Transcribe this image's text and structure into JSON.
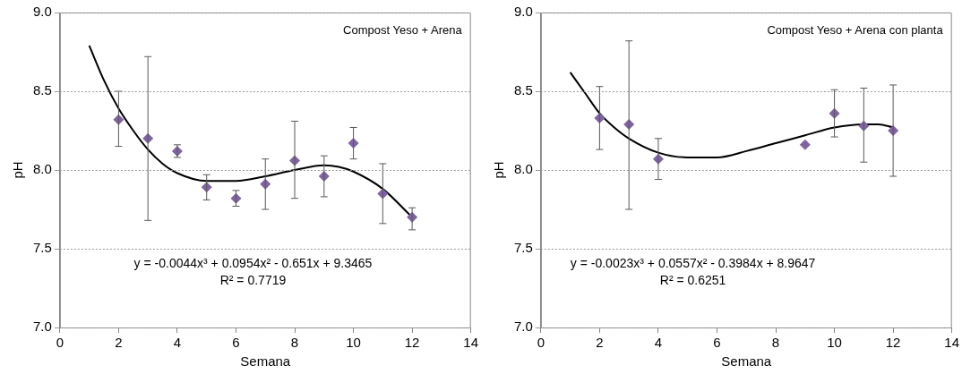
{
  "chart_data": [
    {
      "type": "scatter",
      "title": "Compost Yeso + Arena",
      "xlabel": "Semana",
      "ylabel": "pH",
      "xlim": [
        0,
        14
      ],
      "xticks": [
        0,
        2,
        4,
        6,
        8,
        10,
        12,
        14
      ],
      "ylim": [
        7,
        9
      ],
      "yticks": [
        {
          "value": 7,
          "label": "7.0"
        },
        {
          "value": 7.5,
          "label": "7.5"
        },
        {
          "value": 8,
          "label": "8.0"
        },
        {
          "value": 8.5,
          "label": "8.5"
        },
        {
          "value": 9,
          "label": "9.0"
        }
      ],
      "grid": "y",
      "annotations": [
        "y = -0.0044x³ + 0.0954x² - 0.651x + 9.3465",
        "R² = 0.7719"
      ],
      "series": [
        {
          "type": "scatter",
          "marker": "diamond",
          "color": "#8064a2",
          "x": [
            2,
            3,
            4,
            5,
            6,
            7,
            8,
            9,
            10,
            11,
            12
          ],
          "values": [
            8.32,
            8.2,
            8.12,
            7.89,
            7.82,
            7.91,
            8.06,
            7.96,
            8.17,
            7.85,
            7.7
          ],
          "errors": [
            [
              8.15,
              8.5
            ],
            [
              7.68,
              8.72
            ],
            [
              8.08,
              8.16
            ],
            [
              7.81,
              7.97
            ],
            [
              7.77,
              7.87
            ],
            [
              7.75,
              8.07
            ],
            [
              7.82,
              8.31
            ],
            [
              7.83,
              8.09
            ],
            [
              8.07,
              8.27
            ],
            [
              7.66,
              8.04
            ],
            [
              7.62,
              7.76
            ]
          ]
        },
        {
          "type": "line",
          "marker": "none",
          "color": "#000000",
          "x": [
            1,
            1.5,
            2,
            2.5,
            3,
            3.5,
            4,
            5,
            6,
            7,
            8,
            9,
            9.5,
            10,
            11,
            12
          ],
          "values": [
            8.79,
            8.57,
            8.39,
            8.25,
            8.13,
            8.04,
            7.98,
            7.93,
            7.93,
            7.96,
            8.0,
            8.03,
            8.02,
            7.99,
            7.88,
            7.7
          ]
        }
      ]
    },
    {
      "type": "scatter",
      "title": "Compost Yeso + Arena con planta",
      "xlabel": "Semana",
      "ylabel": "pH",
      "xlim": [
        0,
        14
      ],
      "xticks": [
        0,
        2,
        4,
        6,
        8,
        10,
        12,
        14
      ],
      "ylim": [
        7,
        9
      ],
      "yticks": [
        {
          "value": 7,
          "label": "7.0"
        },
        {
          "value": 7.5,
          "label": "7.5"
        },
        {
          "value": 8,
          "label": "8.0"
        },
        {
          "value": 8.5,
          "label": "8.5"
        },
        {
          "value": 9,
          "label": "9.0"
        }
      ],
      "grid": "y",
      "annotations": [
        "y = -0.0023x³ + 0.0557x² - 0.3984x + 8.9647",
        "R² = 0.6251"
      ],
      "series": [
        {
          "type": "scatter",
          "marker": "diamond",
          "color": "#8064a2",
          "x": [
            2,
            3,
            4,
            9,
            10,
            11,
            12
          ],
          "values": [
            8.33,
            8.29,
            8.07,
            8.16,
            8.36,
            8.28,
            8.25
          ],
          "errors": [
            [
              8.13,
              8.53
            ],
            [
              7.75,
              8.82
            ],
            [
              7.94,
              8.2
            ],
            null,
            [
              8.21,
              8.51
            ],
            [
              8.05,
              8.52
            ],
            [
              7.96,
              8.54
            ]
          ]
        },
        {
          "type": "line",
          "marker": "none",
          "color": "#000000",
          "x": [
            1,
            1.5,
            2,
            2.5,
            3,
            4,
            5,
            6,
            7,
            8,
            9,
            10,
            11,
            11.5,
            12
          ],
          "values": [
            8.62,
            8.49,
            8.36,
            8.27,
            8.2,
            8.11,
            8.08,
            8.08,
            8.12,
            8.17,
            8.22,
            8.27,
            8.29,
            8.29,
            8.27
          ]
        }
      ]
    }
  ]
}
